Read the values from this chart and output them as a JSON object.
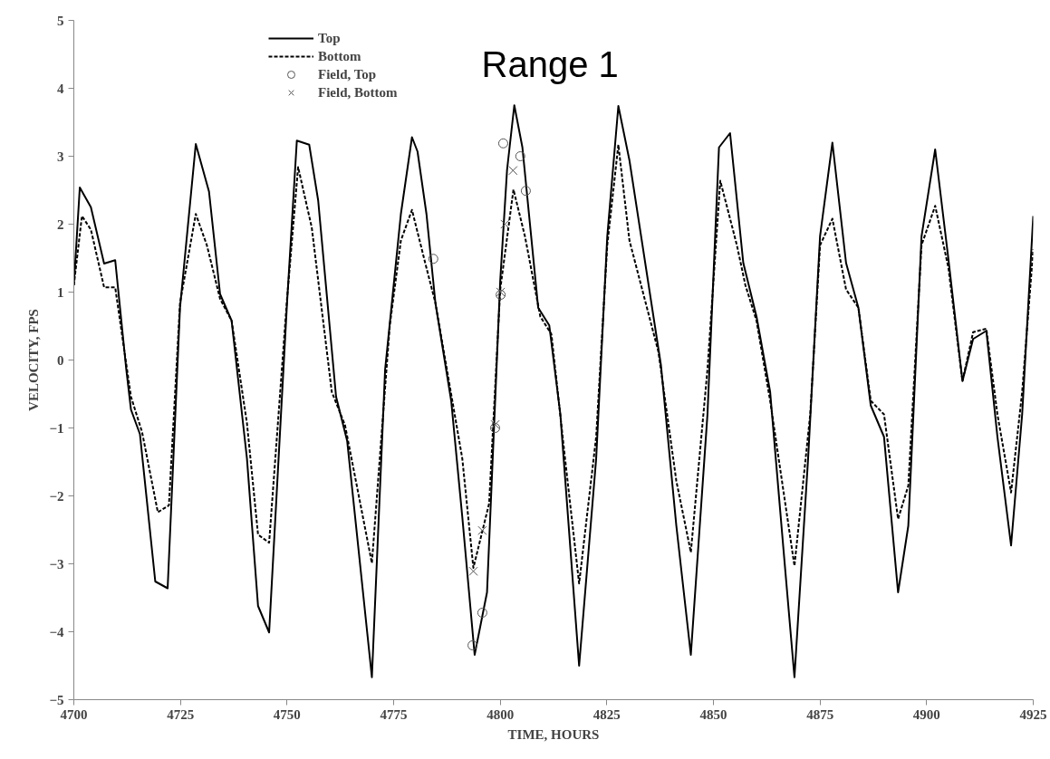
{
  "chart_data": {
    "type": "line",
    "title": "Range 1",
    "xlabel": "TIME, HOURS",
    "ylabel": "VELOCITY, FPS",
    "xlim": [
      4700,
      4925
    ],
    "xticks": [
      4700,
      4725,
      4750,
      4775,
      4800,
      4825,
      4850,
      4875,
      4900,
      4925
    ],
    "ylim": [
      -5,
      5
    ],
    "yticks": [
      -5,
      -4,
      -3,
      -2,
      -1,
      0,
      1,
      2,
      3,
      4,
      5
    ],
    "grid": false,
    "legend": "top left",
    "series": [
      {
        "name": "Top",
        "line_style": "solid",
        "color": "#000000",
        "x": [
          4700,
          4701.4,
          4704,
          4707.1,
          4709.7,
          4712.3,
          4713.4,
          4715.5,
          4719.1,
          4722,
          4724.9,
          4728.6,
          4731.7,
          4734.3,
          4737,
          4740.6,
          4743.2,
          4745.8,
          4750,
          4752.3,
          4755.2,
          4757.3,
          4761.5,
          4764.1,
          4769.9,
          4773,
          4776.7,
          4779.3,
          4780.6,
          4782.7,
          4784.8,
          4788.5,
          4791.1,
          4794,
          4796.9,
          4800,
          4801.6,
          4803.3,
          4805.2,
          4808.9,
          4811.5,
          4814.1,
          4818.5,
          4822.5,
          4825.1,
          4827.7,
          4830.3,
          4837.7,
          4841.3,
          4844.7,
          4848.6,
          4851.3,
          4853.9,
          4857,
          4860.1,
          4863.3,
          4866.4,
          4869,
          4872.2,
          4875,
          4877.9,
          4881.1,
          4884,
          4886.9,
          4890,
          4893.3,
          4895.7,
          4898.8,
          4902,
          4905.1,
          4908.4,
          4910.9,
          4914,
          4916.6,
          4919.8,
          4922.4,
          4925
        ],
        "values": [
          1.1,
          2.54,
          2.25,
          1.42,
          1.47,
          -0.14,
          -0.73,
          -1.09,
          -3.26,
          -3.36,
          0.77,
          3.18,
          2.48,
          0.97,
          0.58,
          -1.45,
          -3.62,
          -4.01,
          0.84,
          3.23,
          3.17,
          2.35,
          -0.54,
          -1.19,
          -4.67,
          -0.14,
          2.15,
          3.28,
          3.07,
          2.15,
          0.84,
          -0.6,
          -2.31,
          -4.34,
          -3.42,
          1.17,
          2.8,
          3.75,
          3.13,
          0.77,
          0.51,
          -0.8,
          -4.5,
          -1.45,
          1.82,
          3.74,
          2.94,
          -0.08,
          -2.44,
          -4.34,
          -0.8,
          3.13,
          3.34,
          1.43,
          0.64,
          -0.47,
          -2.77,
          -4.67,
          -1.45,
          1.82,
          3.2,
          1.43,
          0.77,
          -0.67,
          -1.13,
          -3.42,
          -2.44,
          1.82,
          3.1,
          1.49,
          -0.31,
          0.31,
          0.43,
          -1.13,
          -2.73,
          -0.8,
          2.12
        ]
      },
      {
        "name": "Bottom",
        "line_style": "dashed",
        "color": "#000000",
        "x": [
          4700,
          4701.9,
          4704,
          4707.1,
          4709.7,
          4713.4,
          4716,
          4719.7,
          4722.3,
          4724.9,
          4728.6,
          4731.2,
          4734.3,
          4737,
          4740.6,
          4743.2,
          4745.8,
          4750,
          4752.6,
          4755.8,
          4760.5,
          4763.6,
          4769.9,
          4774.1,
          4776.7,
          4779.3,
          4782.4,
          4784.8,
          4791.1,
          4793.7,
          4797.4,
          4800,
          4803.1,
          4805.8,
          4809.4,
          4812,
          4815.2,
          4818.5,
          4822.5,
          4825.1,
          4827.7,
          4830.3,
          4837.1,
          4841.3,
          4844.7,
          4848.6,
          4851.6,
          4855.5,
          4857.5,
          4860.1,
          4863.3,
          4869,
          4872.7,
          4875,
          4877.9,
          4881.1,
          4884,
          4886.9,
          4890,
          4893.3,
          4895.7,
          4898.8,
          4902,
          4905.1,
          4908.4,
          4910.9,
          4914,
          4916.6,
          4919.8,
          4922.4,
          4925
        ],
        "values": [
          1.1,
          2.12,
          1.92,
          1.07,
          1.07,
          -0.54,
          -1.06,
          -2.24,
          -2.14,
          0.84,
          2.15,
          1.69,
          0.9,
          0.58,
          -0.93,
          -2.57,
          -2.69,
          0.9,
          2.84,
          1.95,
          -0.47,
          -0.96,
          -2.99,
          0.51,
          1.76,
          2.21,
          1.43,
          0.84,
          -1.45,
          -3.06,
          -2.11,
          1.04,
          2.51,
          1.82,
          0.64,
          0.38,
          -1.45,
          -3.29,
          -1.13,
          1.69,
          3.17,
          1.76,
          0.12,
          -1.78,
          -2.83,
          -0.14,
          2.64,
          1.69,
          1.1,
          0.58,
          -0.6,
          -3.03,
          -0.8,
          1.69,
          2.08,
          1.04,
          0.77,
          -0.6,
          -0.8,
          -2.34,
          -1.85,
          1.69,
          2.27,
          1.36,
          -0.31,
          0.41,
          0.46,
          -0.8,
          -1.95,
          -0.47,
          1.63
        ]
      },
      {
        "name": "Field, Top",
        "type": "scatter",
        "marker": "circle",
        "color": "#555555",
        "x": [
          4784.3,
          4793.5,
          4795.8,
          4798.8,
          4800.1,
          4800.7,
          4804.7,
          4806
        ],
        "values": [
          1.49,
          -4.2,
          -3.72,
          -1.0,
          0.96,
          3.19,
          3.0,
          2.49
        ]
      },
      {
        "name": "Field, Bottom",
        "type": "scatter",
        "marker": "cross",
        "color": "#555555",
        "x": [
          4793.7,
          4795.8,
          4798.8,
          4800.1,
          4801.1,
          4803
        ],
        "values": [
          -3.11,
          -2.51,
          -0.95,
          1.0,
          2.0,
          2.79
        ]
      }
    ]
  }
}
